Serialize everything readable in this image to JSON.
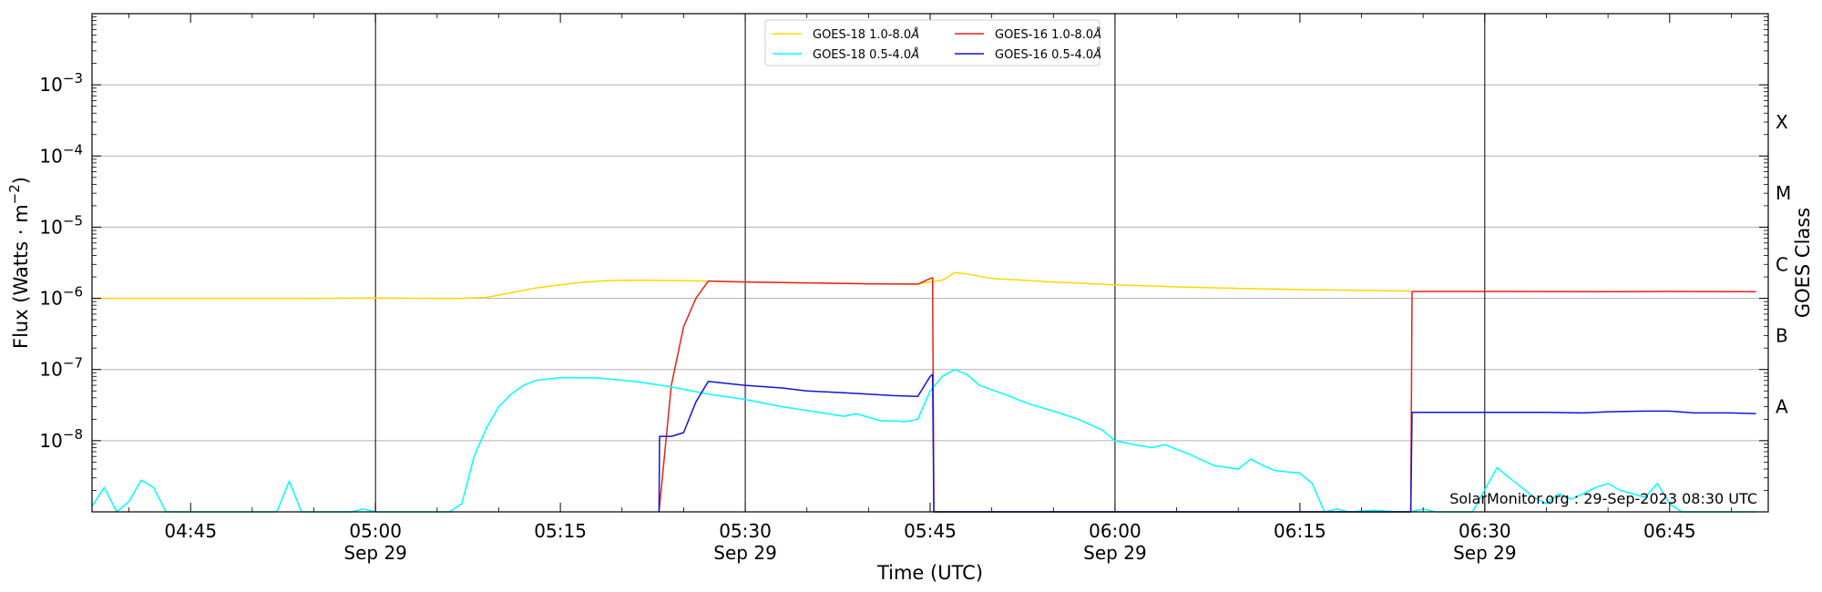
{
  "chart_data": {
    "type": "line",
    "xlabel": "Time (UTC)",
    "ylabel": "Flux (Watts · m",
    "ylabel_sup": "−2",
    "ylabel_close": ")",
    "y2label": "GOES Class",
    "yscale": "log",
    "ylim": [
      1e-09,
      0.01
    ],
    "xlim": [
      "04:37",
      "06:53"
    ],
    "grid": "horizontal at decades, vertical at half hours",
    "legend_location": "top-center",
    "annotation": "SolarMonitor.org : 29-Sep-2023 08:30 UTC",
    "x_ticks": [
      {
        "time": "04:45",
        "label": "04:45"
      },
      {
        "time": "05:00",
        "label": "05:00",
        "label2": "Sep 29"
      },
      {
        "time": "05:15",
        "label": "05:15"
      },
      {
        "time": "05:30",
        "label": "05:30",
        "label2": "Sep 29"
      },
      {
        "time": "05:45",
        "label": "05:45"
      },
      {
        "time": "06:00",
        "label": "06:00",
        "label2": "Sep 29"
      },
      {
        "time": "06:15",
        "label": "06:15"
      },
      {
        "time": "06:30",
        "label": "06:30",
        "label2": "Sep 29"
      },
      {
        "time": "06:45",
        "label": "06:45"
      }
    ],
    "y_ticks": [
      {
        "value": 1e-08,
        "base": "10",
        "exp": "−8"
      },
      {
        "value": 1e-07,
        "base": "10",
        "exp": "−7"
      },
      {
        "value": 1e-06,
        "base": "10",
        "exp": "−6"
      },
      {
        "value": 1e-05,
        "base": "10",
        "exp": "−5"
      },
      {
        "value": 0.0001,
        "base": "10",
        "exp": "−4"
      },
      {
        "value": 0.001,
        "base": "10",
        "exp": "−3"
      }
    ],
    "goes_classes": [
      {
        "label": "A",
        "value": 3e-08
      },
      {
        "label": "B",
        "value": 3e-07
      },
      {
        "label": "C",
        "value": 3e-06
      },
      {
        "label": "M",
        "value": 3e-05
      },
      {
        "label": "X",
        "value": 0.0003
      }
    ],
    "series": [
      {
        "name": "GOES-18 1.0-8.0",
        "name_suffix": "Å",
        "color": "#FFD700",
        "points": [
          [
            "04:37",
            1e-06
          ],
          [
            "04:45",
            1e-06
          ],
          [
            "04:55",
            1e-06
          ],
          [
            "05:00",
            1.01e-06
          ],
          [
            "05:05",
            1e-06
          ],
          [
            "05:07",
            1e-06
          ],
          [
            "05:09",
            1.03e-06
          ],
          [
            "05:11",
            1.2e-06
          ],
          [
            "05:13",
            1.4e-06
          ],
          [
            "05:15",
            1.55e-06
          ],
          [
            "05:17",
            1.7e-06
          ],
          [
            "05:19",
            1.78e-06
          ],
          [
            "05:21",
            1.8e-06
          ],
          [
            "05:24",
            1.78e-06
          ],
          [
            "05:27",
            1.75e-06
          ],
          [
            "05:30",
            1.7e-06
          ],
          [
            "05:35",
            1.65e-06
          ],
          [
            "05:40",
            1.6e-06
          ],
          [
            "05:44",
            1.6e-06
          ],
          [
            "05:46",
            1.8e-06
          ],
          [
            "05:47",
            2.3e-06
          ],
          [
            "05:48",
            2.2e-06
          ],
          [
            "05:50",
            1.9e-06
          ],
          [
            "05:55",
            1.7e-06
          ],
          [
            "06:00",
            1.55e-06
          ],
          [
            "06:05",
            1.45e-06
          ],
          [
            "06:10",
            1.38e-06
          ],
          [
            "06:15",
            1.33e-06
          ],
          [
            "06:20",
            1.29e-06
          ],
          [
            "06:24",
            1.27e-06
          ]
        ]
      },
      {
        "name": "GOES-16 1.0-8.0",
        "name_suffix": "Å",
        "color": "#E8211A",
        "points": [
          [
            "05:23",
            1e-09
          ],
          [
            "05:24",
            6e-08
          ],
          [
            "05:25",
            4e-07
          ],
          [
            "05:26",
            1e-06
          ],
          [
            "05:27",
            1.75e-06
          ],
          [
            "05:30",
            1.7e-06
          ],
          [
            "05:35",
            1.65e-06
          ],
          [
            "05:40",
            1.6e-06
          ],
          [
            "05:44",
            1.58e-06
          ],
          [
            "05:45",
            1.9e-06
          ],
          [
            "05:45.2",
            1.95e-06
          ],
          [
            "05:45.3",
            1e-09
          ],
          [
            "06:24",
            1e-09
          ],
          [
            "06:24.1",
            1.25e-06
          ],
          [
            "06:30",
            1.25e-06
          ],
          [
            "06:40",
            1.24e-06
          ],
          [
            "06:45",
            1.25e-06
          ],
          [
            "06:52",
            1.24e-06
          ]
        ]
      },
      {
        "name": "GOES-18 0.5-4.0",
        "name_suffix": "Å",
        "color": "#00FFFF",
        "points": [
          [
            "04:37",
            1.2e-09
          ],
          [
            "04:38",
            2.2e-09
          ],
          [
            "04:39",
            1e-09
          ],
          [
            "04:40",
            1.4e-09
          ],
          [
            "04:41",
            2.8e-09
          ],
          [
            "04:42",
            2.2e-09
          ],
          [
            "04:43",
            1e-09
          ],
          [
            "04:45",
            1e-09
          ],
          [
            "04:50",
            1e-09
          ],
          [
            "04:52",
            1e-09
          ],
          [
            "04:53",
            2.7e-09
          ],
          [
            "04:54",
            1e-09
          ],
          [
            "04:58",
            1e-09
          ],
          [
            "04:59",
            1.1e-09
          ],
          [
            "05:00",
            1e-09
          ],
          [
            "05:06",
            1e-09
          ],
          [
            "05:07",
            1.3e-09
          ],
          [
            "05:08",
            6e-09
          ],
          [
            "05:09",
            1.5e-08
          ],
          [
            "05:10",
            3e-08
          ],
          [
            "05:11",
            4.5e-08
          ],
          [
            "05:12",
            6e-08
          ],
          [
            "05:13",
            7e-08
          ],
          [
            "05:15",
            7.7e-08
          ],
          [
            "05:18",
            7.6e-08
          ],
          [
            "05:21",
            6.8e-08
          ],
          [
            "05:24",
            5.7e-08
          ],
          [
            "05:27",
            4.5e-08
          ],
          [
            "05:30",
            3.8e-08
          ],
          [
            "05:33",
            3e-08
          ],
          [
            "05:36",
            2.5e-08
          ],
          [
            "05:38",
            2.2e-08
          ],
          [
            "05:39",
            2.4e-08
          ],
          [
            "05:41",
            1.9e-08
          ],
          [
            "05:42",
            1.9e-08
          ],
          [
            "05:43",
            1.85e-08
          ],
          [
            "05:44",
            2e-08
          ],
          [
            "05:45",
            5e-08
          ],
          [
            "05:46",
            8e-08
          ],
          [
            "05:47",
            1e-07
          ],
          [
            "05:48",
            8.5e-08
          ],
          [
            "05:49",
            6e-08
          ],
          [
            "05:51",
            4.5e-08
          ],
          [
            "05:53",
            3.3e-08
          ],
          [
            "05:55",
            2.6e-08
          ],
          [
            "05:57",
            2e-08
          ],
          [
            "05:59",
            1.4e-08
          ],
          [
            "06:00",
            1e-08
          ],
          [
            "06:02",
            8.5e-09
          ],
          [
            "06:03",
            8e-09
          ],
          [
            "06:04",
            8.8e-09
          ],
          [
            "06:06",
            6.5e-09
          ],
          [
            "06:08",
            4.5e-09
          ],
          [
            "06:10",
            4e-09
          ],
          [
            "06:11",
            5.5e-09
          ],
          [
            "06:12",
            4.5e-09
          ],
          [
            "06:13",
            3.8e-09
          ],
          [
            "06:15",
            3.5e-09
          ],
          [
            "06:16",
            2.5e-09
          ],
          [
            "06:17",
            1e-09
          ],
          [
            "06:18",
            1.1e-09
          ],
          [
            "06:19",
            1e-09
          ],
          [
            "06:21",
            1.05e-09
          ],
          [
            "06:23",
            1e-09
          ],
          [
            "06:24",
            1e-09
          ],
          [
            "06:25",
            1.1e-09
          ],
          [
            "06:26",
            1e-09
          ],
          [
            "06:29",
            1e-09
          ],
          [
            "06:31",
            4.2e-09
          ],
          [
            "06:32",
            3e-09
          ],
          [
            "06:33",
            2.2e-09
          ],
          [
            "06:34",
            1.6e-09
          ],
          [
            "06:35",
            1.3e-09
          ],
          [
            "06:36",
            1.8e-09
          ],
          [
            "06:37",
            1.5e-09
          ],
          [
            "06:38",
            1.8e-09
          ],
          [
            "06:39",
            2.2e-09
          ],
          [
            "06:40",
            2.5e-09
          ],
          [
            "06:41",
            2e-09
          ],
          [
            "06:42",
            1.8e-09
          ],
          [
            "06:43",
            1.6e-09
          ],
          [
            "06:44",
            2.5e-09
          ],
          [
            "06:45",
            1.3e-09
          ],
          [
            "06:46",
            1e-09
          ],
          [
            "06:52",
            1e-09
          ]
        ]
      },
      {
        "name": "GOES-16 0.5-4.0",
        "name_suffix": "Å",
        "color": "#1414D8",
        "points": [
          [
            "05:23",
            1e-09
          ],
          [
            "05:23.05",
            1.15e-08
          ],
          [
            "05:24",
            1.15e-08
          ],
          [
            "05:25",
            1.3e-08
          ],
          [
            "05:26",
            3.5e-08
          ],
          [
            "05:27",
            6.8e-08
          ],
          [
            "05:28",
            6.5e-08
          ],
          [
            "05:30",
            6e-08
          ],
          [
            "05:33",
            5.5e-08
          ],
          [
            "05:35",
            5e-08
          ],
          [
            "05:38",
            4.7e-08
          ],
          [
            "05:40",
            4.5e-08
          ],
          [
            "05:42",
            4.3e-08
          ],
          [
            "05:44",
            4.2e-08
          ],
          [
            "05:45",
            8e-08
          ],
          [
            "05:45.2",
            8.5e-08
          ],
          [
            "05:45.3",
            1e-09
          ],
          [
            "06:24",
            1e-09
          ],
          [
            "06:24.1",
            2.5e-08
          ],
          [
            "06:30",
            2.5e-08
          ],
          [
            "06:35",
            2.5e-08
          ],
          [
            "06:38",
            2.45e-08
          ],
          [
            "06:40",
            2.55e-08
          ],
          [
            "06:43",
            2.6e-08
          ],
          [
            "06:45",
            2.6e-08
          ],
          [
            "06:47",
            2.45e-08
          ],
          [
            "06:50",
            2.45e-08
          ],
          [
            "06:52",
            2.4e-08
          ]
        ]
      }
    ]
  }
}
